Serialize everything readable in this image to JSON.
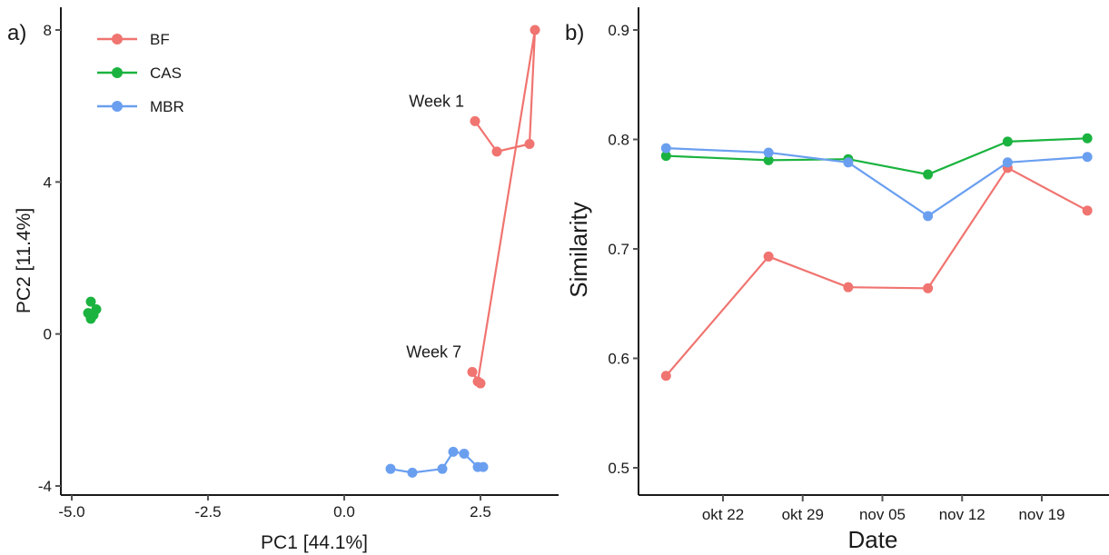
{
  "colors": {
    "BF": "#f07470",
    "CAS": "#1bb33f",
    "MBR": "#6a9ff0"
  },
  "chart_data": [
    {
      "panel": "a)",
      "type": "scatter",
      "xlabel": "PC1 [44.1%]",
      "ylabel": "PC2 [11.4%]",
      "xlim": [
        -5.0,
        3.8
      ],
      "ylim": [
        -4.0,
        8.0
      ],
      "xticks": [
        -5.0,
        -2.5,
        0.0,
        2.5
      ],
      "xtick_labels": [
        "-5.0",
        "-2.5",
        "0.0",
        "2.5"
      ],
      "yticks": [
        -4,
        0,
        4,
        8
      ],
      "ytick_labels": [
        "-4",
        "0",
        "4",
        "8"
      ],
      "grid": false,
      "legend_position": "top-left",
      "points_connected": true,
      "series": [
        {
          "name": "BF",
          "x": [
            2.4,
            2.8,
            3.4,
            3.5,
            2.45,
            2.35,
            2.5
          ],
          "y": [
            5.6,
            4.8,
            5.0,
            8.0,
            -1.25,
            -1.0,
            -1.3
          ]
        },
        {
          "name": "CAS",
          "x": [
            -4.65,
            -4.55,
            -4.6,
            -4.65,
            -4.7
          ],
          "y": [
            0.85,
            0.65,
            0.5,
            0.4,
            0.55
          ]
        },
        {
          "name": "MBR",
          "x": [
            0.85,
            1.25,
            1.8,
            2.0,
            2.2,
            2.45,
            2.55
          ],
          "y": [
            -3.55,
            -3.65,
            -3.55,
            -3.1,
            -3.15,
            -3.5,
            -3.5
          ]
        }
      ],
      "annotations": [
        {
          "text": "Week 1",
          "x": 2.4,
          "y": 5.6
        },
        {
          "text": "Week 7",
          "x": 2.35,
          "y": -1.0
        }
      ]
    },
    {
      "panel": "b)",
      "type": "line",
      "xlabel": "Date",
      "ylabel": "Similarity",
      "xlim": [
        "2018-10-14",
        "2018-11-25"
      ],
      "ylim": [
        0.48,
        0.92
      ],
      "xticks": [
        "2018-10-22",
        "2018-10-29",
        "2018-11-05",
        "2018-11-12",
        "2018-11-19"
      ],
      "xtick_labels": [
        "okt 22",
        "okt 29",
        "nov 05",
        "nov 12",
        "nov 19"
      ],
      "yticks": [
        0.5,
        0.6,
        0.7,
        0.8,
        0.9
      ],
      "ytick_labels": [
        "0.5",
        "0.6",
        "0.7",
        "0.8",
        "0.9"
      ],
      "grid": false,
      "x": [
        "2018-10-17",
        "2018-10-26",
        "2018-11-02",
        "2018-11-09",
        "2018-11-16",
        "2018-11-23"
      ],
      "series": [
        {
          "name": "BF",
          "values": [
            0.584,
            0.693,
            0.665,
            0.664,
            0.774,
            0.735
          ]
        },
        {
          "name": "CAS",
          "values": [
            0.785,
            0.781,
            0.782,
            0.768,
            0.798,
            0.801
          ]
        },
        {
          "name": "MBR",
          "values": [
            0.792,
            0.788,
            0.779,
            0.73,
            0.779,
            0.784
          ]
        }
      ]
    }
  ]
}
